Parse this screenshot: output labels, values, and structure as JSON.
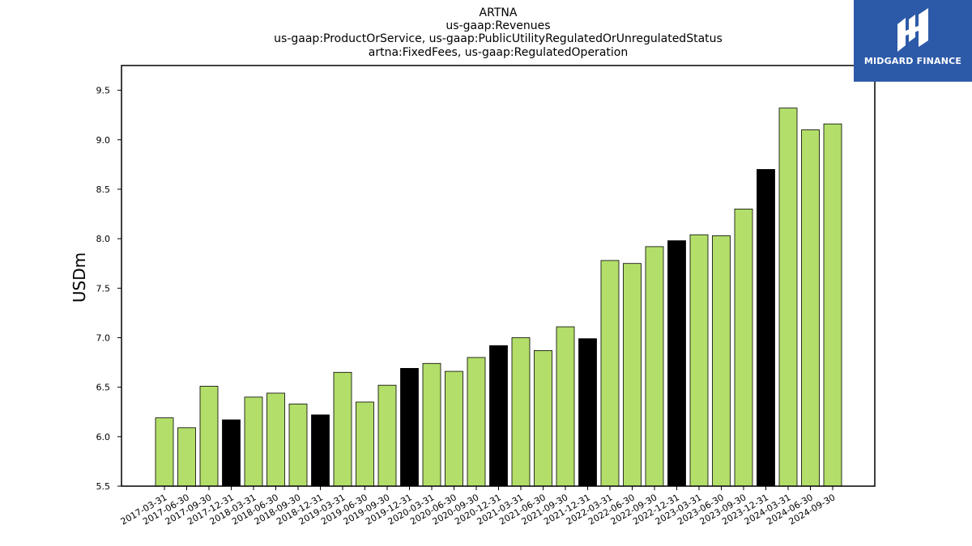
{
  "chart_data": {
    "type": "bar",
    "title_lines": [
      "ARTNA",
      "us-gaap:Revenues",
      "us-gaap:ProductOrService, us-gaap:PublicUtilityRegulatedOrUnregulatedStatus",
      "artna:FixedFees, us-gaap:RegulatedOperation"
    ],
    "xlabel": "",
    "ylabel": "USDm",
    "ylim": [
      5.5,
      9.75
    ],
    "yticks": [
      "5.5",
      "6.0",
      "6.5",
      "7.0",
      "7.5",
      "8.0",
      "8.5",
      "9.0",
      "9.5"
    ],
    "categories": [
      "2017-03-31",
      "2017-06-30",
      "2017-09-30",
      "2017-12-31",
      "2018-03-31",
      "2018-06-30",
      "2018-09-30",
      "2018-12-31",
      "2019-03-31",
      "2019-06-30",
      "2019-09-30",
      "2019-12-31",
      "2020-03-31",
      "2020-06-30",
      "2020-09-30",
      "2020-12-31",
      "2021-03-31",
      "2021-06-30",
      "2021-09-30",
      "2021-12-31",
      "2022-03-31",
      "2022-06-30",
      "2022-09-30",
      "2022-12-31",
      "2023-03-31",
      "2023-06-30",
      "2023-09-30",
      "2023-12-31",
      "2024-03-31",
      "2024-06-30",
      "2024-09-30"
    ],
    "values": [
      6.19,
      6.09,
      6.51,
      6.17,
      6.4,
      6.44,
      6.33,
      6.22,
      6.65,
      6.35,
      6.52,
      6.69,
      6.74,
      6.66,
      6.8,
      6.92,
      7.0,
      6.87,
      7.11,
      6.99,
      7.78,
      7.75,
      7.92,
      7.98,
      8.04,
      8.03,
      8.3,
      8.7,
      9.32,
      9.1,
      9.16
    ],
    "colors": {
      "quarterly": "#b3de69",
      "year_end": "#000000",
      "edge": "#000000"
    },
    "grid": false,
    "legend": "none"
  },
  "logo": {
    "text": "MIDGARD FINANCE",
    "background": "#2d5aa8"
  }
}
